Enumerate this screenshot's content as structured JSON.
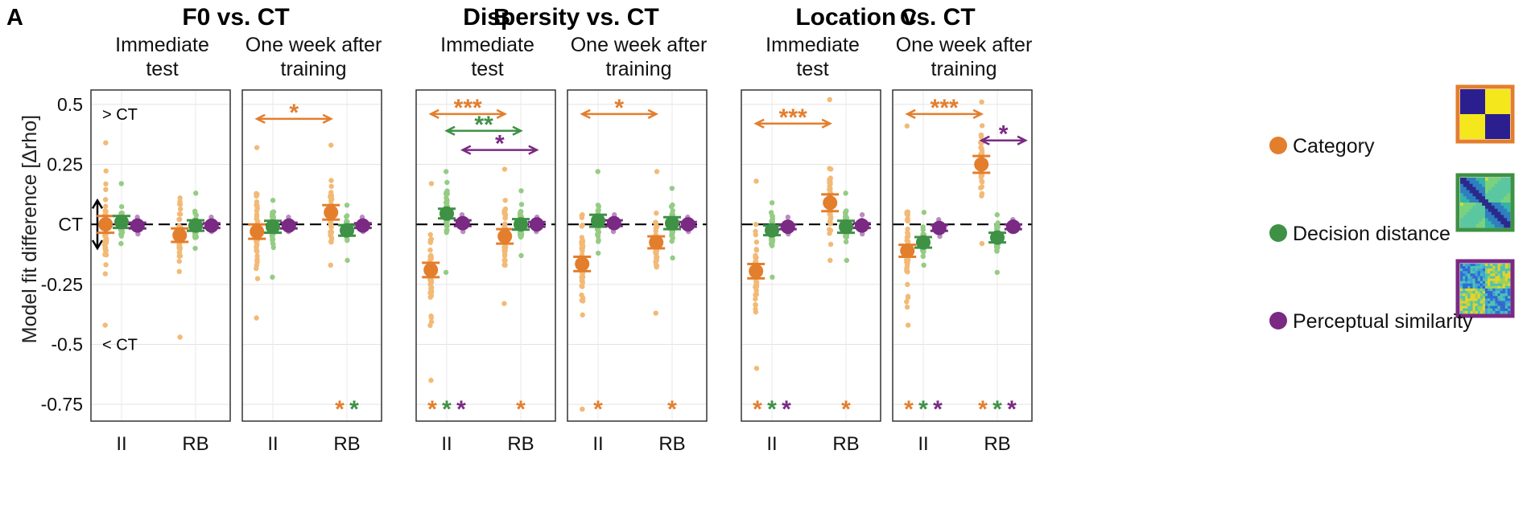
{
  "chart_data": {
    "type": "scatter",
    "ylabel": "Model fit difference [Δrho]",
    "yticks": [
      0.5,
      0.25,
      0,
      -0.25,
      -0.5,
      -0.75
    ],
    "ytick_labels": [
      "0.5",
      "0.25",
      "CT",
      "-0.25",
      "-0.5",
      "-0.75"
    ],
    "ylim": [
      -0.8,
      0.55
    ],
    "annotations": {
      "above": "> CT",
      "below": "< CT"
    },
    "x_categories": [
      "II",
      "RB"
    ],
    "model_colors": {
      "category": "#E37E2D",
      "decision": "#3E9145",
      "perceptual": "#7A2A83",
      "category_light": "#F2BA76",
      "decision_light": "#95CC85",
      "perceptual_light": "#B98DC0"
    },
    "legend": [
      {
        "key": "category",
        "label": "Category",
        "icon": "category-matrix"
      },
      {
        "key": "decision",
        "label": "Decision distance",
        "icon": "decision-distance-matrix"
      },
      {
        "key": "perceptual",
        "label": "Perceptual similarity",
        "icon": "perceptual-similarity-matrix"
      }
    ],
    "panels": [
      {
        "letter": "A",
        "title": "F0 vs. CT",
        "subpanels": [
          {
            "title": [
              "Immediate",
              "test"
            ],
            "means": {
              "II": {
                "category": [
                  0.0,
                  0.035
                ],
                "decision": [
                  0.01,
                  0.025
                ],
                "perceptual": [
                  -0.005,
                  0.012
                ]
              },
              "RB": {
                "category": [
                  -0.045,
                  0.028
                ],
                "decision": [
                  -0.005,
                  0.022
                ],
                "perceptual": [
                  -0.005,
                  0.01
                ]
              }
            },
            "spread": {
              "II": {
                "category": [
                  -0.42,
                  0.34
                ],
                "decision": [
                  -0.08,
                  0.17
                ],
                "perceptual": [
                  -0.04,
                  0.03
                ]
              },
              "RB": {
                "category": [
                  -0.47,
                  0.11
                ],
                "decision": [
                  -0.1,
                  0.13
                ],
                "perceptual": [
                  -0.03,
                  0.03
                ]
              }
            },
            "brackets": [],
            "bottom_stars": {
              "II": [],
              "RB": []
            }
          },
          {
            "title": [
              "One week after",
              "training"
            ],
            "means": {
              "II": {
                "category": [
                  -0.03,
                  0.03
                ],
                "decision": [
                  -0.01,
                  0.025
                ],
                "perceptual": [
                  -0.005,
                  0.012
                ]
              },
              "RB": {
                "category": [
                  0.05,
                  0.03
                ],
                "decision": [
                  -0.025,
                  0.022
                ],
                "perceptual": [
                  -0.005,
                  0.01
                ]
              }
            },
            "spread": {
              "II": {
                "category": [
                  -0.39,
                  0.32
                ],
                "decision": [
                  -0.22,
                  0.1
                ],
                "perceptual": [
                  -0.03,
                  0.03
                ]
              },
              "RB": {
                "category": [
                  -0.17,
                  0.33
                ],
                "decision": [
                  -0.15,
                  0.08
                ],
                "perceptual": [
                  -0.03,
                  0.03
                ]
              }
            },
            "brackets": [
              {
                "from": "II-category",
                "to": "RB-category",
                "model": "category",
                "label": "*",
                "y": 0.44
              }
            ],
            "bottom_stars": {
              "II": [],
              "RB": [
                "category",
                "decision"
              ]
            }
          }
        ]
      },
      {
        "letter": "B",
        "title": "Dispersity vs. CT",
        "subpanels": [
          {
            "title": [
              "Immediate",
              "test"
            ],
            "means": {
              "II": {
                "category": [
                  -0.19,
                  0.03
                ],
                "decision": [
                  0.045,
                  0.02
                ],
                "perceptual": [
                  0.005,
                  0.012
                ]
              },
              "RB": {
                "category": [
                  -0.05,
                  0.03
                ],
                "decision": [
                  0.0,
                  0.022
                ],
                "perceptual": [
                  0.0,
                  0.01
                ]
              }
            },
            "spread": {
              "II": {
                "category": [
                  -0.65,
                  0.17
                ],
                "decision": [
                  -0.2,
                  0.22
                ],
                "perceptual": [
                  -0.03,
                  0.04
                ]
              },
              "RB": {
                "category": [
                  -0.33,
                  0.23
                ],
                "decision": [
                  -0.13,
                  0.14
                ],
                "perceptual": [
                  -0.03,
                  0.03
                ]
              }
            },
            "brackets": [
              {
                "from": "II-category",
                "to": "RB-category",
                "model": "category",
                "label": "***",
                "y": 0.46
              },
              {
                "from": "II-decision",
                "to": "RB-decision",
                "model": "decision",
                "label": "**",
                "y": 0.39
              },
              {
                "from": "II-perceptual",
                "to": "RB-perceptual",
                "model": "perceptual",
                "label": "*",
                "y": 0.31
              }
            ],
            "bottom_stars": {
              "II": [
                "category",
                "decision",
                "perceptual"
              ],
              "RB": [
                "category"
              ]
            }
          },
          {
            "title": [
              "One week after",
              "training"
            ],
            "means": {
              "II": {
                "category": [
                  -0.165,
                  0.03
                ],
                "decision": [
                  0.015,
                  0.025
                ],
                "perceptual": [
                  0.005,
                  0.012
                ]
              },
              "RB": {
                "category": [
                  -0.075,
                  0.025
                ],
                "decision": [
                  0.005,
                  0.025
                ],
                "perceptual": [
                  0.0,
                  0.01
                ]
              }
            },
            "spread": {
              "II": {
                "category": [
                  -0.77,
                  0.04
                ],
                "decision": [
                  -0.12,
                  0.22
                ],
                "perceptual": [
                  -0.03,
                  0.04
                ]
              },
              "RB": {
                "category": [
                  -0.37,
                  0.22
                ],
                "decision": [
                  -0.14,
                  0.15
                ],
                "perceptual": [
                  -0.03,
                  0.03
                ]
              }
            },
            "brackets": [
              {
                "from": "II-category",
                "to": "RB-category",
                "model": "category",
                "label": "*",
                "y": 0.46
              }
            ],
            "bottom_stars": {
              "II": [
                "category"
              ],
              "RB": [
                "category"
              ]
            }
          }
        ]
      },
      {
        "letter": "C",
        "title": "Location vs. CT",
        "subpanels": [
          {
            "title": [
              "Immediate",
              "test"
            ],
            "means": {
              "II": {
                "category": [
                  -0.195,
                  0.03
                ],
                "decision": [
                  -0.025,
                  0.02
                ],
                "perceptual": [
                  -0.01,
                  0.01
                ]
              },
              "RB": {
                "category": [
                  0.09,
                  0.035
                ],
                "decision": [
                  -0.01,
                  0.025
                ],
                "perceptual": [
                  -0.005,
                  0.01
                ]
              }
            },
            "spread": {
              "II": {
                "category": [
                  -0.6,
                  0.18
                ],
                "decision": [
                  -0.22,
                  0.09
                ],
                "perceptual": [
                  -0.04,
                  0.03
                ]
              },
              "RB": {
                "category": [
                  -0.15,
                  0.52
                ],
                "decision": [
                  -0.15,
                  0.13
                ],
                "perceptual": [
                  -0.04,
                  0.04
                ]
              }
            },
            "brackets": [
              {
                "from": "II-category",
                "to": "RB-category",
                "model": "category",
                "label": "***",
                "y": 0.42
              }
            ],
            "bottom_stars": {
              "II": [
                "category",
                "decision",
                "perceptual"
              ],
              "RB": [
                "category"
              ]
            }
          },
          {
            "title": [
              "One week after",
              "training"
            ],
            "means": {
              "II": {
                "category": [
                  -0.11,
                  0.025
                ],
                "decision": [
                  -0.075,
                  0.022
                ],
                "perceptual": [
                  -0.015,
                  0.012
                ]
              },
              "RB": {
                "category": [
                  0.25,
                  0.035
                ],
                "decision": [
                  -0.055,
                  0.02
                ],
                "perceptual": [
                  -0.01,
                  0.01
                ]
              }
            },
            "spread": {
              "II": {
                "category": [
                  -0.42,
                  0.41
                ],
                "decision": [
                  -0.17,
                  0.05
                ],
                "perceptual": [
                  -0.05,
                  0.02
                ]
              },
              "RB": {
                "category": [
                  -0.08,
                  0.51
                ],
                "decision": [
                  -0.2,
                  0.04
                ],
                "perceptual": [
                  -0.03,
                  0.02
                ]
              }
            },
            "brackets": [
              {
                "from": "II-category",
                "to": "RB-category",
                "model": "category",
                "label": "***",
                "y": 0.46
              },
              {
                "from": "RB-category",
                "to": "RB-perceptual-far",
                "model": "perceptual",
                "label": "*",
                "y": 0.35
              }
            ],
            "bottom_stars": {
              "II": [
                "category",
                "decision",
                "perceptual"
              ],
              "RB": [
                "category",
                "decision",
                "perceptual"
              ]
            }
          }
        ]
      }
    ]
  }
}
